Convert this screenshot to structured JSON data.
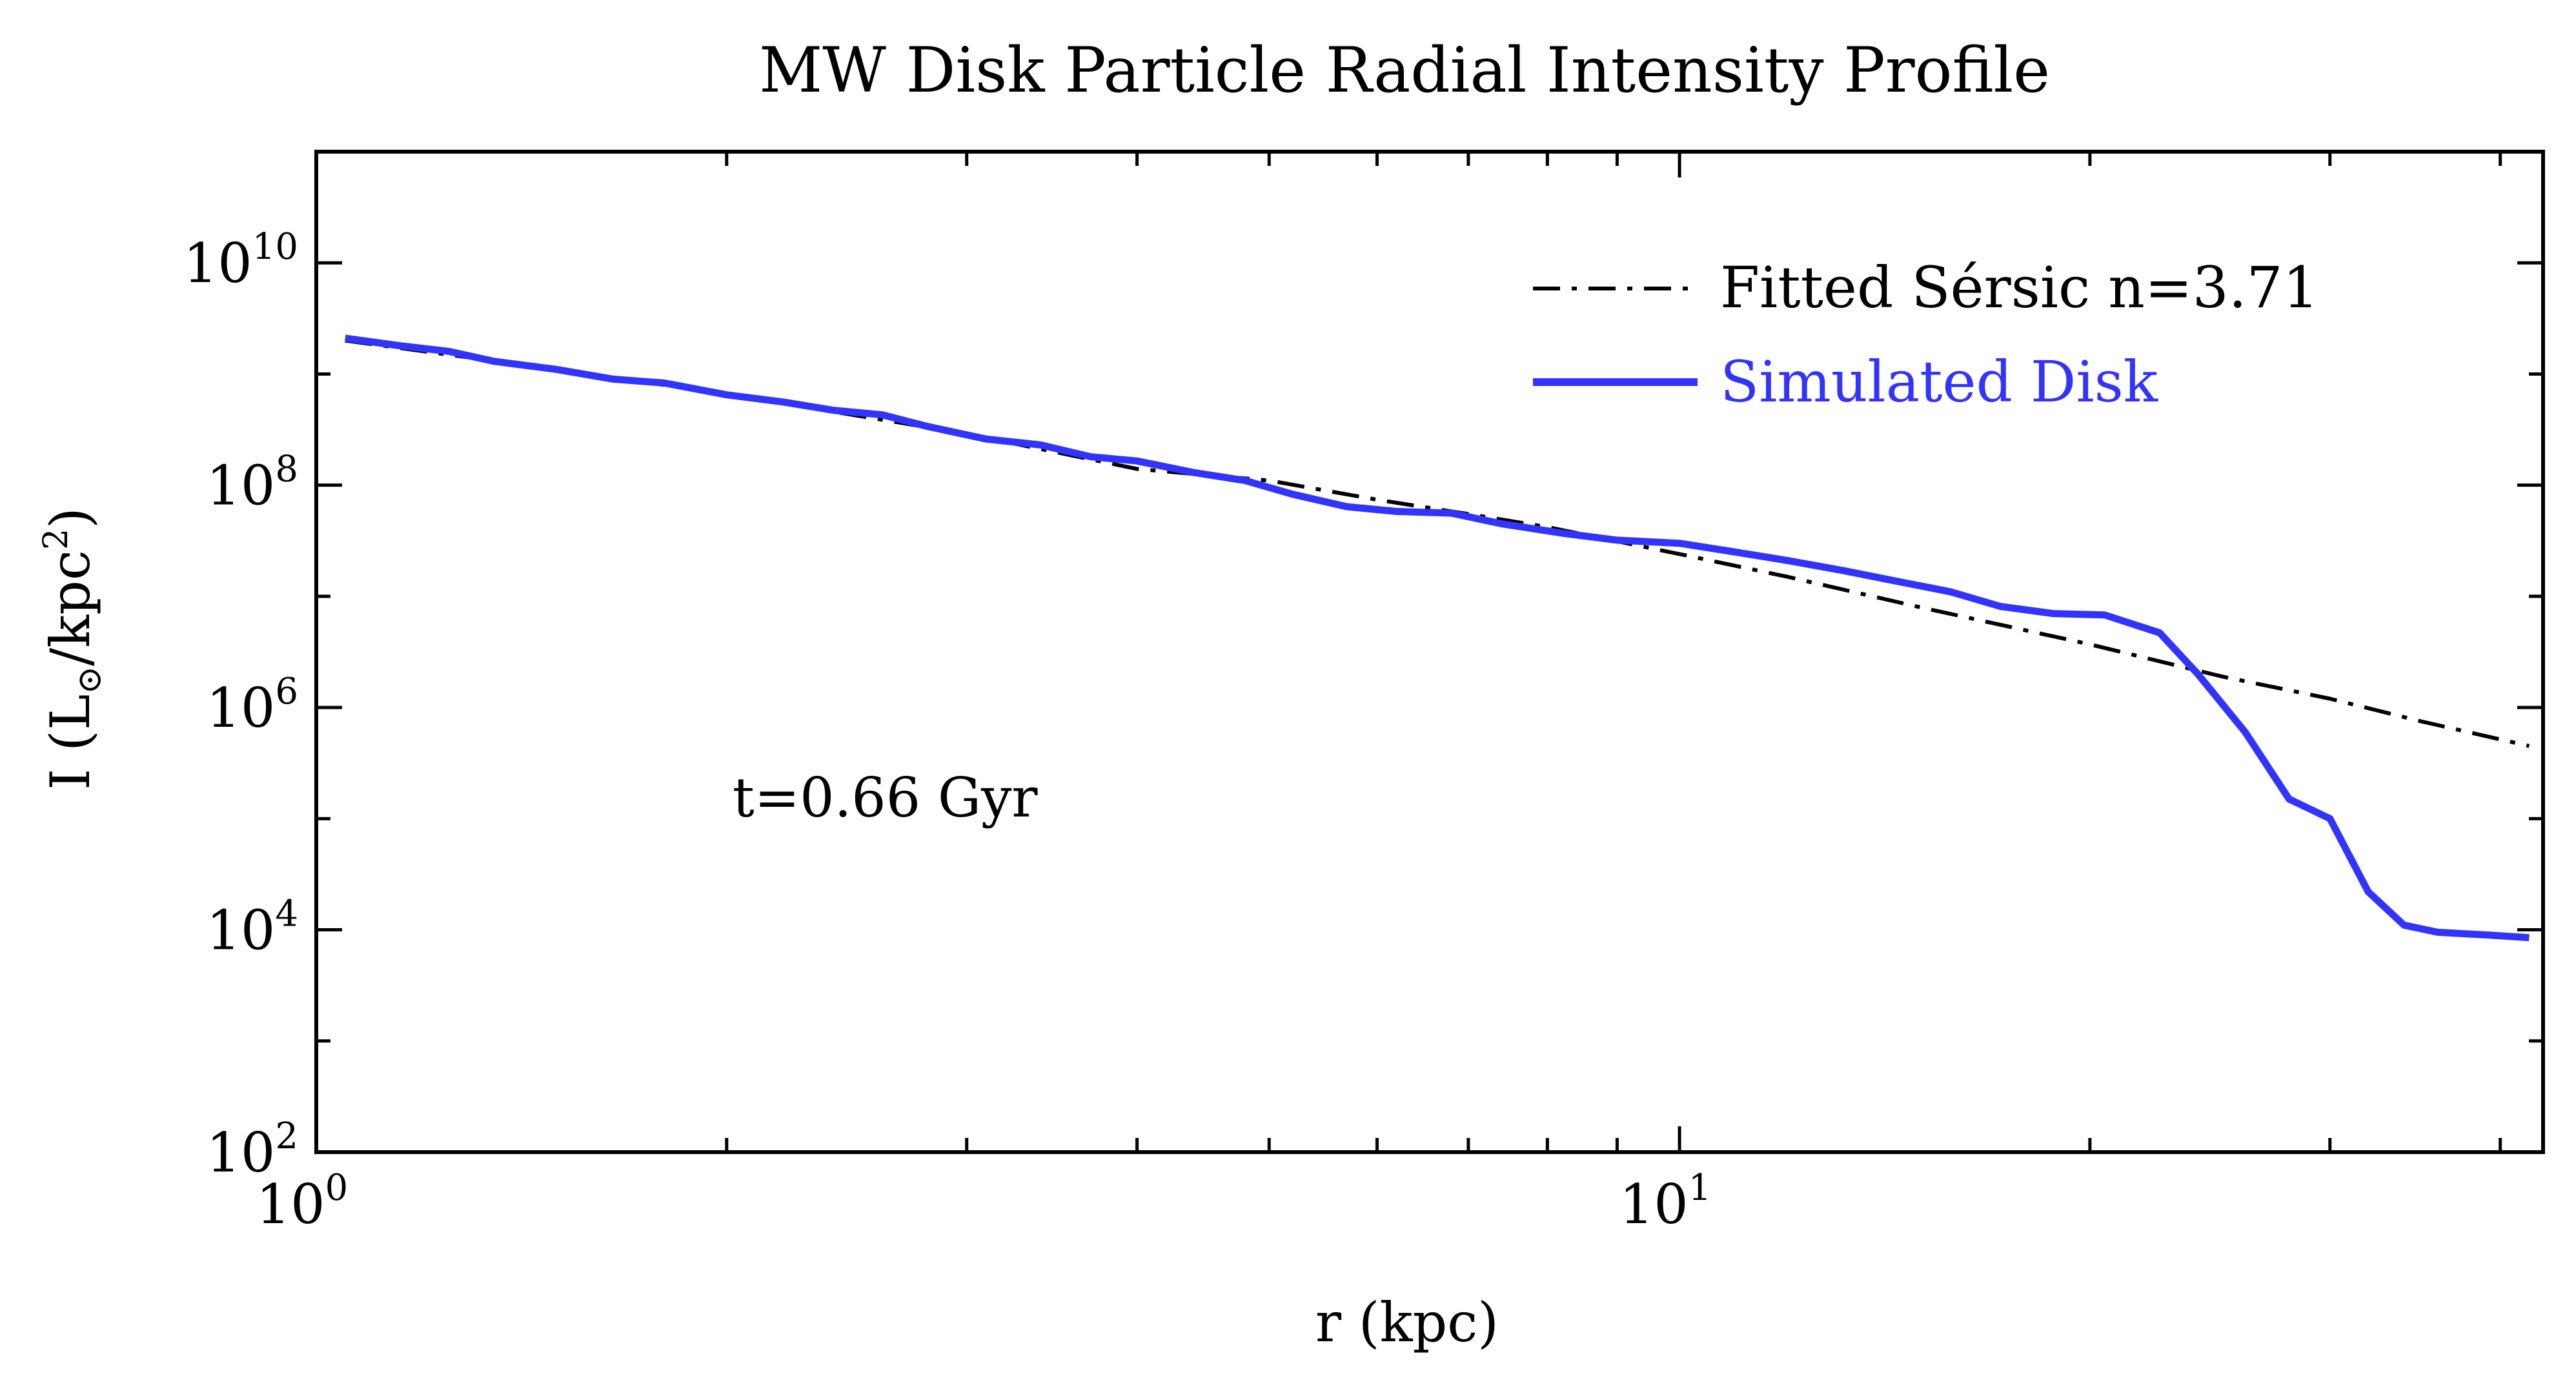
{
  "chart_data": {
    "type": "line",
    "title": "MW Disk Particle Radial Intensity Profile",
    "xlabel": "r (kpc)",
    "ylabel": "I (L⊙/kpc²)",
    "ylabel_parts": {
      "main": "I (L",
      "sub": "⊙",
      "mid": "/kpc",
      "sup": "2",
      "end": ")"
    },
    "xscale": "log",
    "yscale": "log",
    "xlim": [
      1.0,
      43.0
    ],
    "ylim": [
      100,
      100000000000.0
    ],
    "x_ticks": [
      {
        "value": 1,
        "base": "10",
        "exp": "0"
      },
      {
        "value": 10,
        "base": "10",
        "exp": "1"
      }
    ],
    "y_ticks": [
      {
        "value": 100,
        "base": "10",
        "exp": "2"
      },
      {
        "value": 10000,
        "base": "10",
        "exp": "4"
      },
      {
        "value": 1000000,
        "base": "10",
        "exp": "6"
      },
      {
        "value": 100000000,
        "base": "10",
        "exp": "8"
      },
      {
        "value": 10000000000,
        "base": "10",
        "exp": "10"
      }
    ],
    "grid": false,
    "legend_position": "top-right",
    "annotation": "t=0.66 Gyr",
    "series": [
      {
        "name": "Fitted Sérsic n=3.71",
        "color": "#000000",
        "style": "dashdot",
        "x": [
          1.05,
          1.5,
          2,
          3,
          4,
          5,
          6,
          7,
          8,
          10,
          12,
          15,
          20,
          25,
          30,
          35,
          42
        ],
        "y": [
          2000000000.0,
          1100000000.0,
          660000000.0,
          290000000.0,
          140000000.0,
          110000000.0,
          74000000.0,
          55000000.0,
          42000000.0,
          24000000.0,
          15000000.0,
          8000000.0,
          3700000.0,
          1900000.0,
          1200000.0,
          750000.0,
          450000.0
        ]
      },
      {
        "name": "Simulated Disk",
        "color": "#3333ff",
        "style": "solid",
        "x": [
          1.05,
          1.15,
          1.25,
          1.35,
          1.5,
          1.65,
          1.8,
          2.0,
          2.2,
          2.4,
          2.6,
          2.8,
          3.1,
          3.4,
          3.7,
          4.0,
          4.4,
          4.8,
          5.2,
          5.7,
          6.2,
          6.8,
          7.4,
          8.2,
          9.0,
          10.0,
          11.0,
          12.0,
          13.2,
          14.5,
          15.8,
          17.2,
          18.8,
          20.5,
          22.5,
          24.0,
          26.0,
          28.0,
          30.0,
          32.0,
          34.0,
          36.0,
          39.0,
          42.0
        ],
        "y": [
          2100000000.0,
          1800000000.0,
          1600000000.0,
          1300000000.0,
          1100000000.0,
          900000000.0,
          830000000.0,
          650000000.0,
          560000000.0,
          470000000.0,
          430000000.0,
          340000000.0,
          260000000.0,
          230000000.0,
          180000000.0,
          165000000.0,
          130000000.0,
          110000000.0,
          83000000.0,
          64000000.0,
          58000000.0,
          56000000.0,
          45000000.0,
          37000000.0,
          32000000.0,
          30000000.0,
          25000000.0,
          21000000.0,
          17000000.0,
          13500000.0,
          11000000.0,
          8100000.0,
          7000000.0,
          6800000.0,
          4700000.0,
          2000000.0,
          600000.0,
          150000.0,
          100000.0,
          22000.0,
          11000.0,
          9500.0,
          9000.0,
          8500.0
        ]
      }
    ]
  }
}
